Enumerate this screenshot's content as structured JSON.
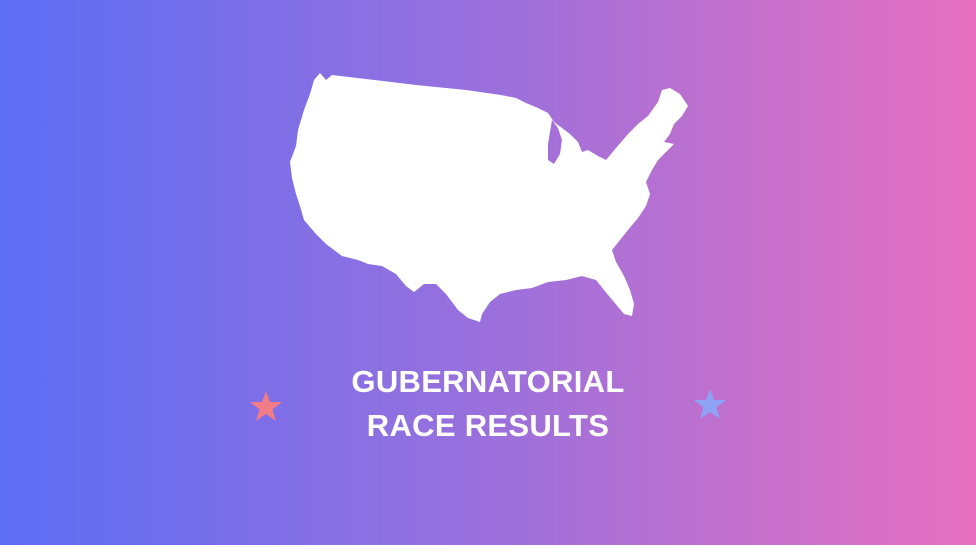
{
  "colors": {
    "gradient_start": "#5c6ef5",
    "gradient_mid": "#9a70dc",
    "gradient_end": "#e870c0",
    "map_fill": "#ffffff",
    "star_left": "#f27c86",
    "star_right": "#8fa3f5",
    "title_text": "#ffffff"
  },
  "icons": {
    "map": "usa-map-icon",
    "star_left": "star-icon",
    "star_right": "star-icon"
  },
  "title": {
    "line1": "GUBERNATORIAL",
    "line2": "RACE RESULTS"
  }
}
